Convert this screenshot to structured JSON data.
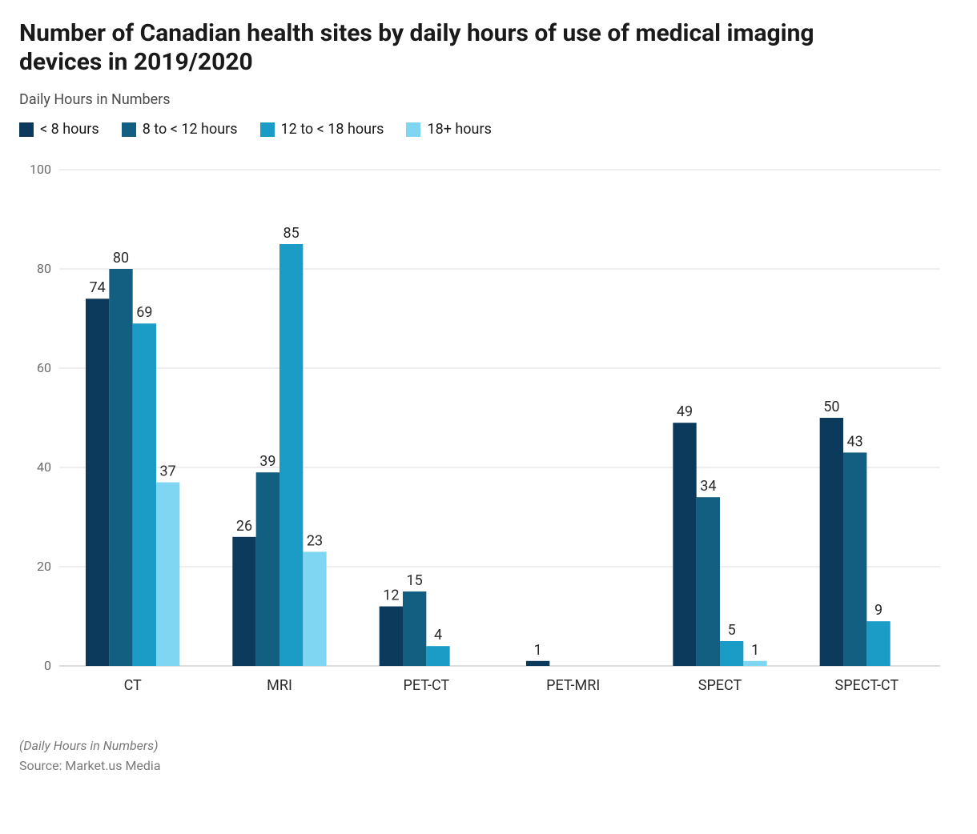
{
  "chart": {
    "type": "bar-grouped",
    "title": "Number of Canadian health sites by daily hours of use of medical imaging devices in 2019/2020",
    "subtitle": "Daily Hours in Numbers",
    "categories": [
      "CT",
      "MRI",
      "PET-CT",
      "PET-MRI",
      "SPECT",
      "SPECT-CT"
    ],
    "series": [
      {
        "name": "< 8 hours",
        "color": "#0b3a5c",
        "values": [
          74,
          26,
          12,
          1,
          49,
          50
        ]
      },
      {
        "name": "8 to < 12 hours",
        "color": "#135f82",
        "values": [
          80,
          39,
          15,
          null,
          34,
          43
        ]
      },
      {
        "name": "12 to < 18 hours",
        "color": "#1a9cc7",
        "values": [
          69,
          85,
          4,
          null,
          5,
          9
        ]
      },
      {
        "name": "18+ hours",
        "color": "#7fd6f2",
        "values": [
          37,
          23,
          null,
          null,
          1,
          null
        ]
      }
    ],
    "ylim": [
      0,
      100
    ],
    "ytick_step": 20,
    "grid_color": "#dddddd",
    "background_color": "#ffffff",
    "title_fontsize": 30,
    "subtitle_fontsize": 18,
    "label_fontsize": 18,
    "tick_fontsize": 16,
    "bar_label_fontsize": 18,
    "bar_width_ratio": 0.2,
    "group_gap_ratio": 0.2
  },
  "footer": {
    "note": "(Daily Hours in Numbers)",
    "source": "Source: Market.us Media"
  }
}
